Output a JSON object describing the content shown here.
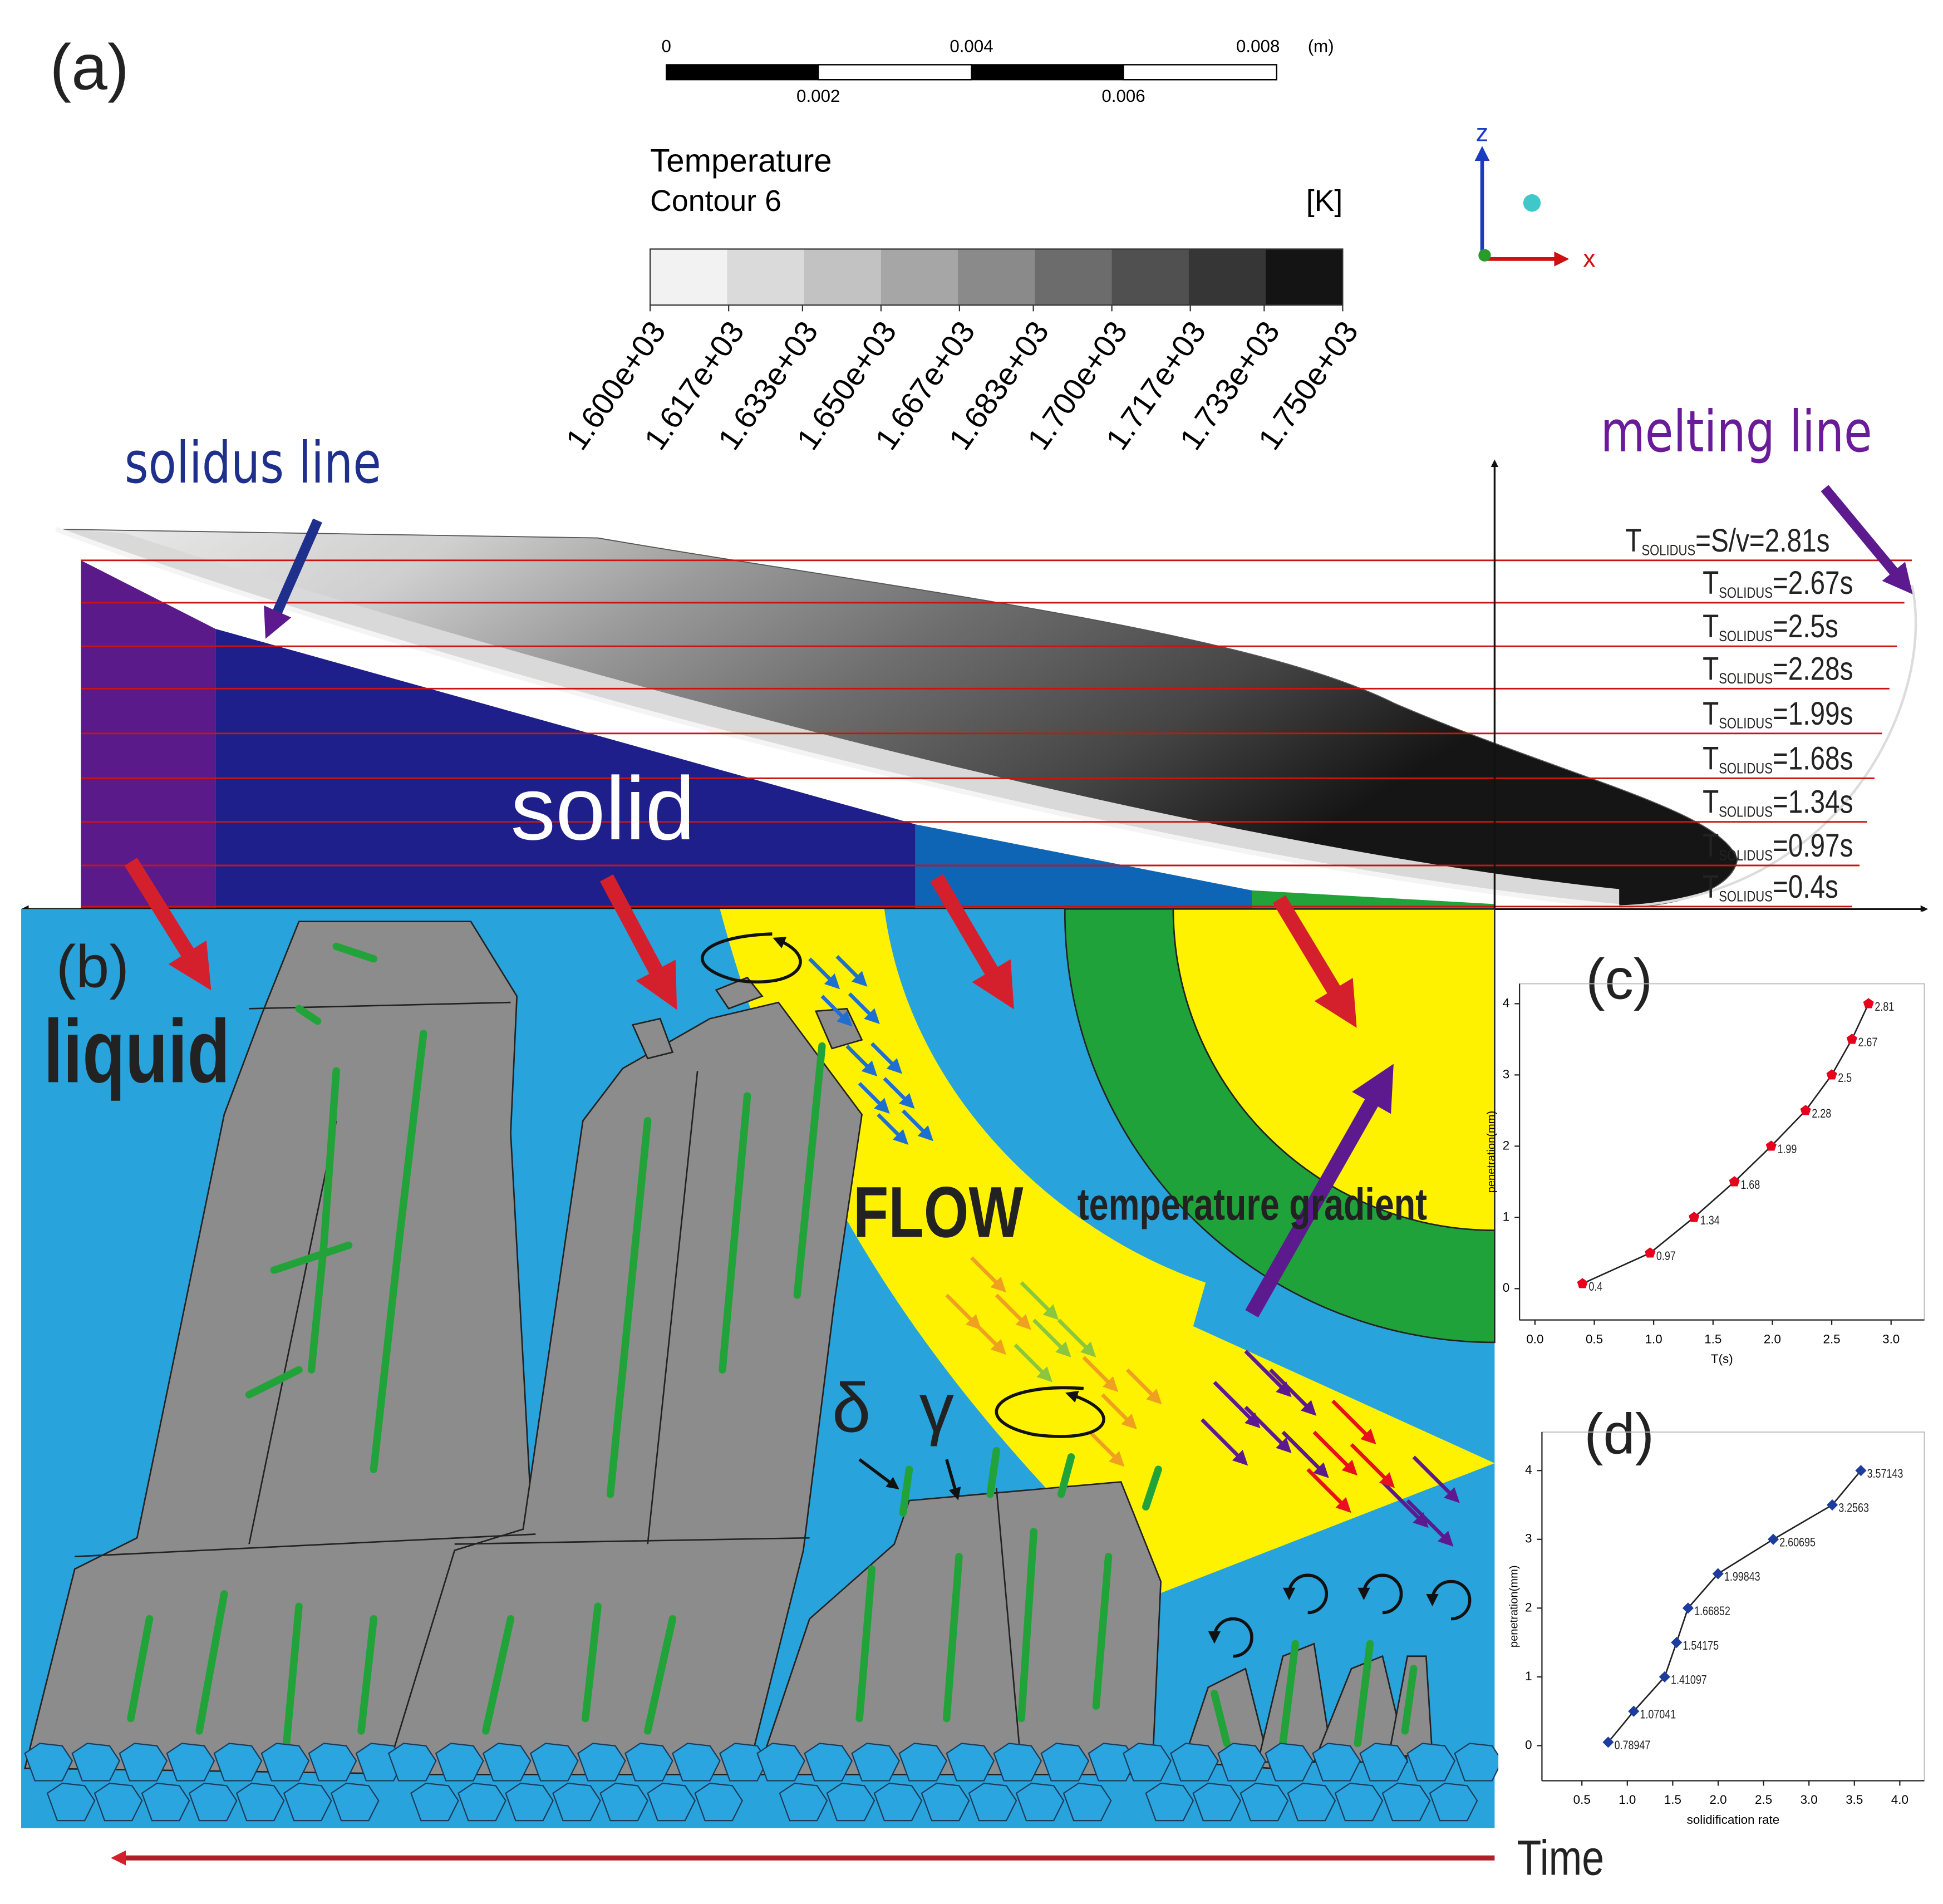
{
  "panels": {
    "a": "(a)",
    "b": "(b)"
  },
  "scale_bar": {
    "top_labels": [
      "0",
      "0.004",
      "0.008"
    ],
    "unit": "(m)",
    "bottom_labels": [
      "0.002",
      "0.006"
    ]
  },
  "legend": {
    "title": "Temperature",
    "subtitle": "Contour 6",
    "unit": "[K]",
    "ticks": [
      {
        "value": 1600,
        "label": "1.600e+03"
      },
      {
        "value": 1617,
        "label": "1.617e+03"
      },
      {
        "value": 1633,
        "label": "1.633e+03"
      },
      {
        "value": 1650,
        "label": "1.650e+03"
      },
      {
        "value": 1667,
        "label": "1.667e+03"
      },
      {
        "value": 1683,
        "label": "1.683e+03"
      },
      {
        "value": 1700,
        "label": "1.700e+03"
      },
      {
        "value": 1717,
        "label": "1.717e+03"
      },
      {
        "value": 1733,
        "label": "1.733e+03"
      },
      {
        "value": 1750,
        "label": "1.750e+03"
      }
    ]
  },
  "axes_triad": {
    "z": "z",
    "x": "x"
  },
  "annotations": {
    "solidus_line": "solidus line",
    "melting_line": "melting line",
    "solid": "solid",
    "liquid": "liquid",
    "flow": "FLOW",
    "temperature_gradient": "temperature gradient",
    "delta": "δ",
    "gamma": "γ",
    "time": "Time"
  },
  "solidus_times": [
    {
      "symbol": "T",
      "subscript": "SOLIDUS",
      "text": "=S/v=2.81s"
    },
    {
      "symbol": "T",
      "subscript": "SOLIDUS",
      "text": "=2.67s"
    },
    {
      "symbol": "T",
      "subscript": "SOLIDUS",
      "text": "=2.5s"
    },
    {
      "symbol": "T",
      "subscript": "SOLIDUS",
      "text": "=2.28s"
    },
    {
      "symbol": "T",
      "subscript": "SOLIDUS",
      "text": "=1.99s"
    },
    {
      "symbol": "T",
      "subscript": "SOLIDUS",
      "text": "=1.68s"
    },
    {
      "symbol": "T",
      "subscript": "SOLIDUS",
      "text": "=1.34s"
    },
    {
      "symbol": "T",
      "subscript": "SOLIDUS",
      "text": "=0.97s"
    },
    {
      "symbol": "T",
      "subscript": "SOLIDUS",
      "text": "=0.4s"
    }
  ],
  "chart_data": [
    {
      "type": "line",
      "panel_label": "(c)",
      "x_label": "T(s)",
      "y_label": "penetration(mm)",
      "x": [
        0.4,
        0.97,
        1.34,
        1.68,
        1.99,
        2.28,
        2.5,
        2.67,
        2.81
      ],
      "series": [
        {
          "color": "#e8001c",
          "values": [
            0.07,
            0.5,
            1,
            1.5,
            2,
            2.5,
            3,
            3.5,
            4
          ]
        }
      ],
      "marker": "pentagon",
      "xlim": [
        -0.13,
        3.28
      ],
      "ylim": [
        -0.44,
        4.28
      ],
      "xticks": [
        {
          "value": 0,
          "label": "0.0"
        },
        0.5,
        {
          "value": 1,
          "label": "1.0"
        },
        1.5,
        {
          "value": 2,
          "label": "2.0"
        },
        2.5,
        {
          "value": 3,
          "label": "3.0"
        }
      ],
      "yticks": [
        0,
        1,
        2,
        3,
        4
      ]
    },
    {
      "type": "line",
      "panel_label": "(d)",
      "x_label": "solidification rate",
      "y_label": "penetration(mm)",
      "x": [
        0.78947,
        1.07041,
        1.41097,
        1.54175,
        1.66852,
        1.99843,
        2.60695,
        3.2563,
        3.57143
      ],
      "series": [
        {
          "color": "#1c3d9e",
          "values": [
            0.05,
            0.5,
            1,
            1.5,
            2,
            2.5,
            3,
            3.5,
            4
          ]
        }
      ],
      "marker": "diamond",
      "xlim": [
        0.06,
        4.27
      ],
      "ylim": [
        -0.51,
        4.56
      ],
      "xticks": [
        0.5,
        {
          "value": 1,
          "label": "1.0"
        },
        1.5,
        {
          "value": 2,
          "label": "2.0"
        },
        2.5,
        {
          "value": 3,
          "label": "3.0"
        },
        3.5,
        {
          "value": 4,
          "label": "4.0"
        }
      ],
      "yticks": [
        0,
        1,
        2,
        3,
        4
      ]
    }
  ]
}
